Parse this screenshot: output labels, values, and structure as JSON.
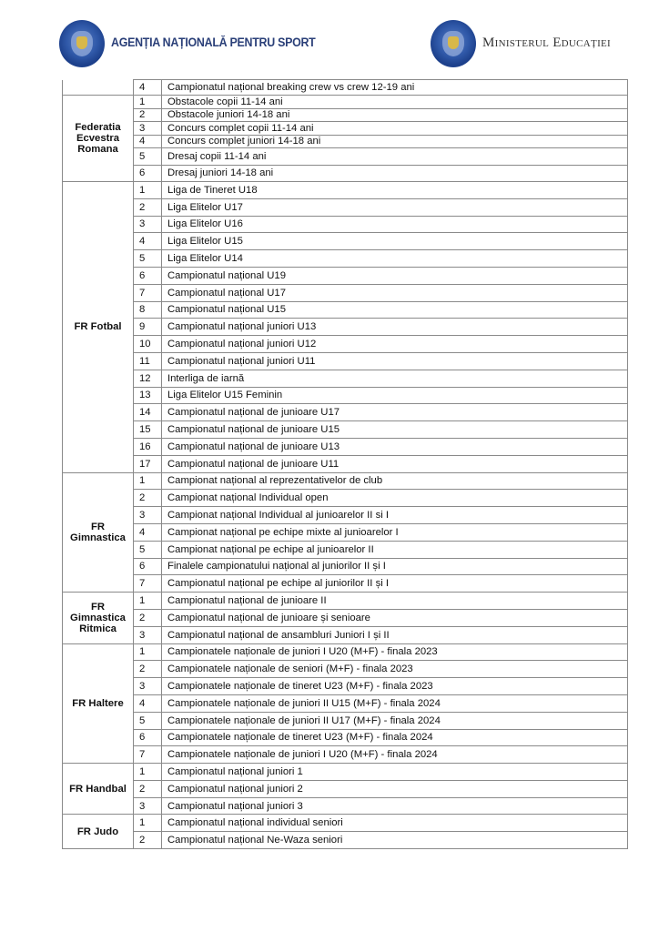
{
  "header": {
    "left_brand": "AGENȚIA NAȚIONALĂ PENTRU SPORT",
    "right_brand": "Ministerul Educației",
    "logo_text": "GUVERNUL ROMÂNIEI",
    "colors": {
      "logo_blue": "#2f58a8",
      "brand_navy": "#2a3f78",
      "border": "#8a8a8a"
    }
  },
  "table": {
    "groups": [
      {
        "federation": "",
        "rows": [
          {
            "n": "4",
            "name": "Campionatul național breaking crew vs crew 12-19 ani"
          }
        ]
      },
      {
        "federation": "Federatia Ecvestra Romana",
        "rows": [
          {
            "n": "1",
            "name": "Obstacole copii 11-14 ani"
          },
          {
            "n": "2",
            "name": "Obstacole juniori 14-18 ani"
          },
          {
            "n": "3",
            "name": "Concurs complet copii 11-14 ani"
          },
          {
            "n": "4",
            "name": "Concurs complet juniori 14-18 ani"
          },
          {
            "n": "5",
            "name": "Dresaj copii 11-14 ani"
          },
          {
            "n": "6",
            "name": "Dresaj juniori 14-18 ani"
          }
        ]
      },
      {
        "federation": "FR Fotbal",
        "rows": [
          {
            "n": "1",
            "name": "Liga de Tineret U18"
          },
          {
            "n": "2",
            "name": "Liga Elitelor U17"
          },
          {
            "n": "3",
            "name": "Liga Elitelor U16"
          },
          {
            "n": "4",
            "name": "Liga Elitelor U15"
          },
          {
            "n": "5",
            "name": "Liga Elitelor U14"
          },
          {
            "n": "6",
            "name": "Campionatul național U19"
          },
          {
            "n": "7",
            "name": "Campionatul național U17"
          },
          {
            "n": "8",
            "name": "Campionatul național U15"
          },
          {
            "n": "9",
            "name": "Campionatul național juniori U13"
          },
          {
            "n": "10",
            "name": "Campionatul național juniori U12"
          },
          {
            "n": "11",
            "name": "Campionatul național juniori U11"
          },
          {
            "n": "12",
            "name": "Interliga de iarnă"
          },
          {
            "n": "13",
            "name": "Liga Elitelor U15 Feminin"
          },
          {
            "n": "14",
            "name": "Campionatul național de junioare U17"
          },
          {
            "n": "15",
            "name": "Campionatul național de junioare U15"
          },
          {
            "n": "16",
            "name": "Campionatul național de junioare U13"
          },
          {
            "n": "17",
            "name": "Campionatul național de junioare U11"
          }
        ]
      },
      {
        "federation": "FR Gimnastica",
        "rows": [
          {
            "n": "1",
            "name": "Campionat național al reprezentativelor de club"
          },
          {
            "n": "2",
            "name": "Campionat național Individual open"
          },
          {
            "n": "3",
            "name": "Campionat național Individual al junioarelor II si I"
          },
          {
            "n": "4",
            "name": "Campionat național pe echipe mixte al junioarelor I"
          },
          {
            "n": "5",
            "name": "Campionat național pe echipe al junioarelor II"
          },
          {
            "n": "6",
            "name": "Finalele campionatului național al juniorilor II și I"
          },
          {
            "n": "7",
            "name": "Campionatul național pe echipe al juniorilor II și I"
          }
        ]
      },
      {
        "federation": "FR Gimnastica Ritmica",
        "rows": [
          {
            "n": "1",
            "name": "Campionatul național de junioare II"
          },
          {
            "n": "2",
            "name": "Campionatul național de junioare și senioare"
          },
          {
            "n": "3",
            "name": "Campionatul național de ansambluri Juniori I și II"
          }
        ]
      },
      {
        "federation": "FR Haltere",
        "rows": [
          {
            "n": "1",
            "name": "Campionatele naționale de juniori I U20 (M+F) - finala 2023"
          },
          {
            "n": "2",
            "name": "Campionatele naționale de seniori (M+F) - finala 2023"
          },
          {
            "n": "3",
            "name": "Campionatele naționale de tineret U23 (M+F) - finala 2023"
          },
          {
            "n": "4",
            "name": "Campionatele naționale de juniori II U15 (M+F) - finala 2024"
          },
          {
            "n": "5",
            "name": "Campionatele naționale de juniori II U17 (M+F) - finala 2024"
          },
          {
            "n": "6",
            "name": "Campionatele naționale de tineret U23 (M+F) - finala 2024"
          },
          {
            "n": "7",
            "name": "Campionatele naționale de juniori I U20 (M+F) - finala 2024"
          }
        ]
      },
      {
        "federation": "FR Handbal",
        "rows": [
          {
            "n": "1",
            "name": "Campionatul național juniori 1"
          },
          {
            "n": "2",
            "name": "Campionatul național juniori 2"
          },
          {
            "n": "3",
            "name": "Campionatul național juniori 3"
          }
        ]
      },
      {
        "federation": "FR Judo",
        "rows": [
          {
            "n": "1",
            "name": "Campionatul național individual seniori"
          },
          {
            "n": "2",
            "name": "Campionatul național Ne-Waza seniori"
          }
        ]
      }
    ]
  }
}
